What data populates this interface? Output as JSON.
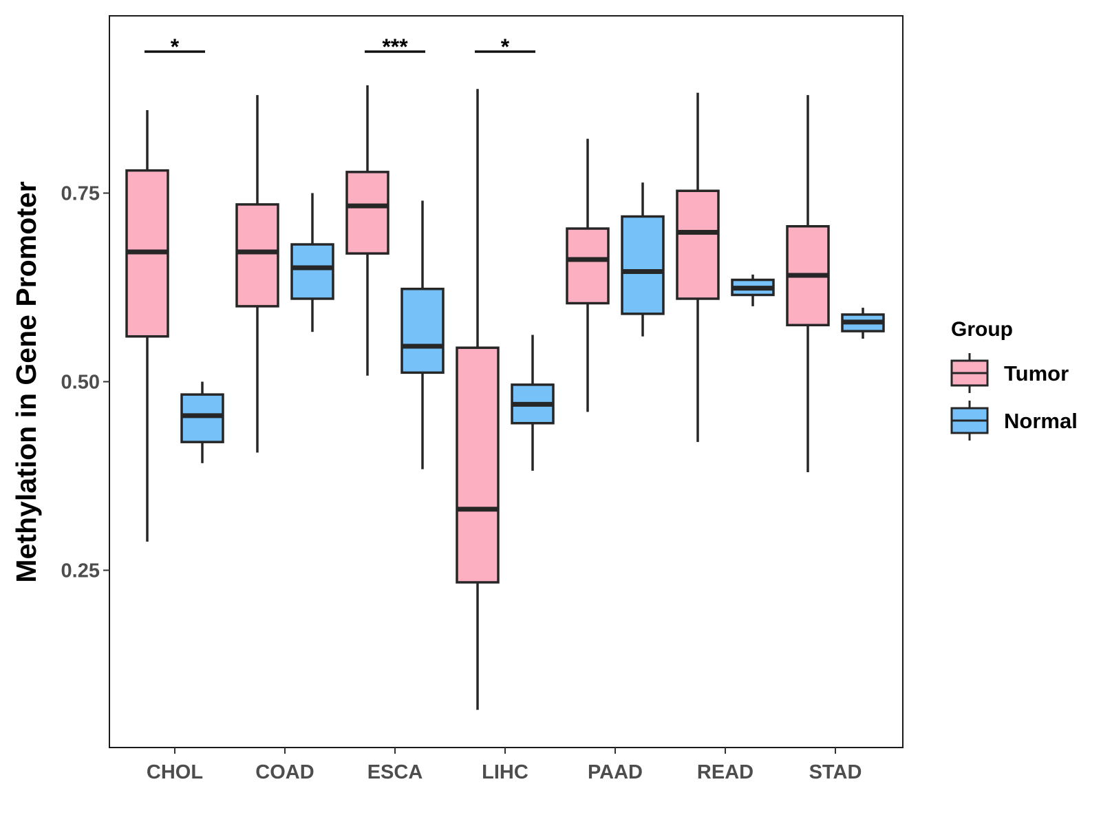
{
  "chart_data": {
    "type": "boxplot",
    "title": "",
    "xlabel": "",
    "ylabel": "Methylation in Gene Promoter",
    "ylim": [
      0.015,
      0.985
    ],
    "yticks": [
      0.25,
      0.5,
      0.75
    ],
    "ytick_labels": [
      "0.25",
      "0.50",
      "0.75"
    ],
    "categories": [
      "CHOL",
      "COAD",
      "ESCA",
      "LIHC",
      "PAAD",
      "READ",
      "STAD"
    ],
    "legend": {
      "title": "Group",
      "position": "right",
      "entries": [
        {
          "name": "Tumor",
          "color": "#fbafc1"
        },
        {
          "name": "Normal",
          "color": "#76c1f8"
        }
      ]
    },
    "series": [
      {
        "name": "Tumor",
        "color": "#fbafc1",
        "boxes": [
          {
            "category": "CHOL",
            "whisker_low": 0.288,
            "q1": 0.56,
            "median": 0.672,
            "q3": 0.78,
            "whisker_high": 0.86
          },
          {
            "category": "COAD",
            "whisker_low": 0.406,
            "q1": 0.6,
            "median": 0.672,
            "q3": 0.735,
            "whisker_high": 0.88
          },
          {
            "category": "ESCA",
            "whisker_low": 0.508,
            "q1": 0.67,
            "median": 0.733,
            "q3": 0.778,
            "whisker_high": 0.893
          },
          {
            "category": "LIHC",
            "whisker_low": 0.065,
            "q1": 0.234,
            "median": 0.331,
            "q3": 0.545,
            "whisker_high": 0.888
          },
          {
            "category": "PAAD",
            "whisker_low": 0.46,
            "q1": 0.604,
            "median": 0.662,
            "q3": 0.703,
            "whisker_high": 0.822
          },
          {
            "category": "READ",
            "whisker_low": 0.42,
            "q1": 0.61,
            "median": 0.698,
            "q3": 0.753,
            "whisker_high": 0.883
          },
          {
            "category": "STAD",
            "whisker_low": 0.38,
            "q1": 0.575,
            "median": 0.641,
            "q3": 0.706,
            "whisker_high": 0.88
          }
        ]
      },
      {
        "name": "Normal",
        "color": "#76c1f8",
        "boxes": [
          {
            "category": "CHOL",
            "whisker_low": 0.392,
            "q1": 0.42,
            "median": 0.455,
            "q3": 0.483,
            "whisker_high": 0.5
          },
          {
            "category": "COAD",
            "whisker_low": 0.566,
            "q1": 0.61,
            "median": 0.651,
            "q3": 0.682,
            "whisker_high": 0.75
          },
          {
            "category": "ESCA",
            "whisker_low": 0.384,
            "q1": 0.512,
            "median": 0.547,
            "q3": 0.623,
            "whisker_high": 0.74
          },
          {
            "category": "LIHC",
            "whisker_low": 0.382,
            "q1": 0.445,
            "median": 0.47,
            "q3": 0.496,
            "whisker_high": 0.562
          },
          {
            "category": "PAAD",
            "whisker_low": 0.56,
            "q1": 0.59,
            "median": 0.646,
            "q3": 0.719,
            "whisker_high": 0.764
          },
          {
            "category": "READ",
            "whisker_low": 0.6,
            "q1": 0.615,
            "median": 0.624,
            "q3": 0.635,
            "whisker_high": 0.642
          },
          {
            "category": "STAD",
            "whisker_low": 0.557,
            "q1": 0.567,
            "median": 0.579,
            "q3": 0.589,
            "whisker_high": 0.598
          }
        ]
      }
    ],
    "annotations": [
      {
        "category": "CHOL",
        "label": "*"
      },
      {
        "category": "ESCA",
        "label": "***"
      },
      {
        "category": "LIHC",
        "label": "*"
      }
    ]
  }
}
